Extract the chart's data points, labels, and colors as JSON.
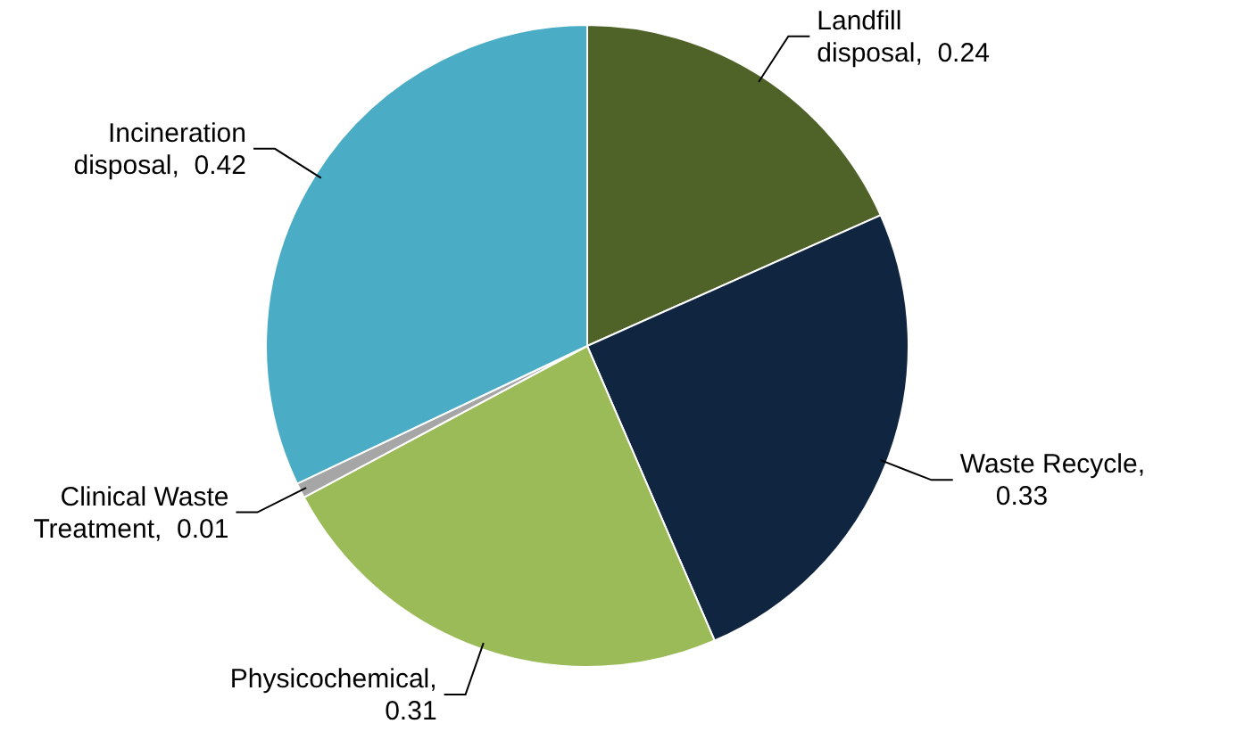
{
  "chart_data": {
    "type": "pie",
    "categories": [
      "Landfill disposal",
      "Waste Recycle",
      "Physicochemical",
      "Clinical Waste Treatment",
      "Incineration disposal"
    ],
    "values": [
      0.24,
      0.33,
      0.31,
      0.01,
      0.42
    ],
    "colors": [
      "#4f6228",
      "#10253f",
      "#9bbb59",
      "#a6a6a6",
      "#4bacc6"
    ],
    "value_labels": [
      ", 0.24",
      ", 0.33",
      ", 0.31",
      ", 0.01",
      ", 0.42"
    ]
  }
}
